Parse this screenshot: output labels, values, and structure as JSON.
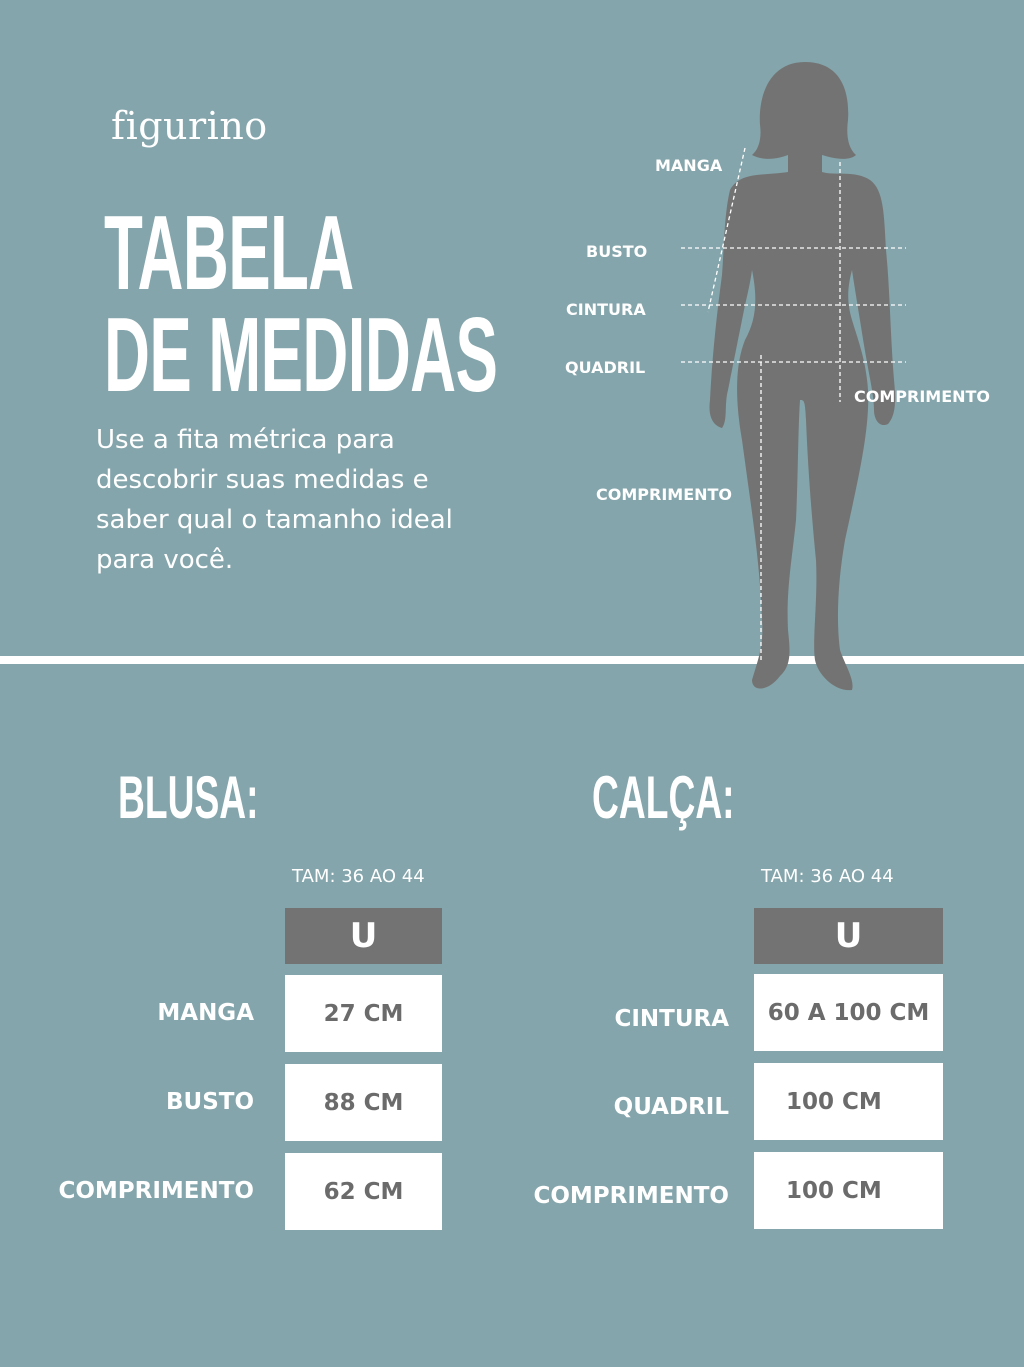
{
  "brand": "figurino",
  "title_line1": "TABELA",
  "title_line2": "DE MEDIDAS",
  "description": "Use a fita métrica para descobrir suas medidas e saber qual o tamanho ideal para você.",
  "figure_labels": {
    "manga": "MANGA",
    "busto": "BUSTO",
    "cintura": "CINTURA",
    "quadril": "QUADRIL",
    "comprimento_top": "COMPRIMENTO",
    "comprimento_bottom": "COMPRIMENTO"
  },
  "colors": {
    "background": "#84a5ab",
    "silhouette": "#737373",
    "header": "#737373",
    "cell": "#ffffff"
  },
  "blusa": {
    "heading": "BLUSA:",
    "size_range": "TAM: 36 AO 44",
    "column": "U",
    "rows": [
      {
        "label": "MANGA",
        "value": "27 CM"
      },
      {
        "label": "BUSTO",
        "value": "88 CM"
      },
      {
        "label": "COMPRIMENTO",
        "value": "62 CM"
      }
    ]
  },
  "calca": {
    "heading": "CALÇA:",
    "size_range": "TAM: 36 AO 44",
    "column": "U",
    "rows": [
      {
        "label": "CINTURA",
        "value": "60 A 100 CM"
      },
      {
        "label": "QUADRIL",
        "value": "100 CM"
      },
      {
        "label": "COMPRIMENTO",
        "value": "100 CM"
      }
    ]
  }
}
